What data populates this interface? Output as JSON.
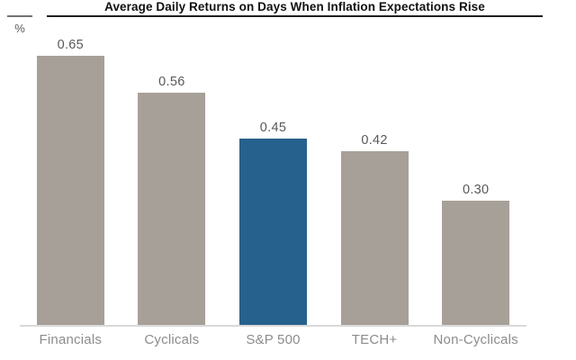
{
  "header": {
    "title": "Average Daily Returns on Days When Inflation Expectations Rise",
    "unit_label": "%"
  },
  "colors": {
    "bar_default": "#a7a098",
    "bar_highlight": "#26618e",
    "value_label": "#595959",
    "category_label": "#8c8c8c",
    "axis_line": "#d9d9d9",
    "title_rule": "#1f1f1f",
    "unit_rule": "#737373"
  },
  "chart_data": {
    "type": "bar",
    "title": "Average Daily Returns on Days When Inflation Expectations Rise",
    "ylabel": "%",
    "xlabel": "",
    "categories": [
      "Financials",
      "Cyclicals",
      "S&P 500",
      "TECH+",
      "Non-Cyclicals"
    ],
    "values": [
      0.65,
      0.56,
      0.45,
      0.42,
      0.3
    ],
    "value_labels": [
      "0.65",
      "0.56",
      "0.45",
      "0.42",
      "0.30"
    ],
    "highlight_category": "S&P 500",
    "highlight_index": 2,
    "ylim": [
      0,
      0.7
    ],
    "grid": false,
    "legend": false
  }
}
